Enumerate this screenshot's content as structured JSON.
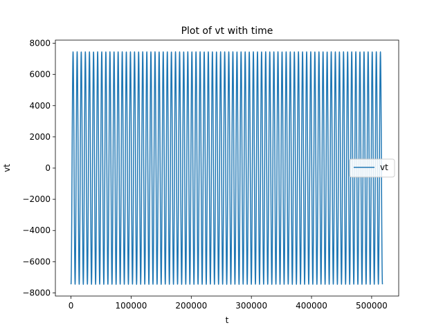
{
  "chart_data": {
    "type": "line",
    "title": "Plot of vt with time",
    "xlabel": "t",
    "ylabel": "vt",
    "xlim": [
      -26000,
      545000
    ],
    "ylim": [
      -8200,
      8200
    ],
    "xticks": [
      0,
      100000,
      200000,
      300000,
      400000,
      500000
    ],
    "yticks": [
      -8000,
      -6000,
      -4000,
      -2000,
      0,
      2000,
      4000,
      6000,
      8000
    ],
    "grid": false,
    "legend": {
      "position": "center-right",
      "entries": [
        "vt"
      ]
    },
    "series": [
      {
        "name": "vt",
        "color": "#1f77b4",
        "function": "cosine",
        "amplitude": 7450,
        "phase_start": "trough",
        "x_start": 0,
        "x_end": 518000,
        "cycles": 76
      }
    ]
  }
}
